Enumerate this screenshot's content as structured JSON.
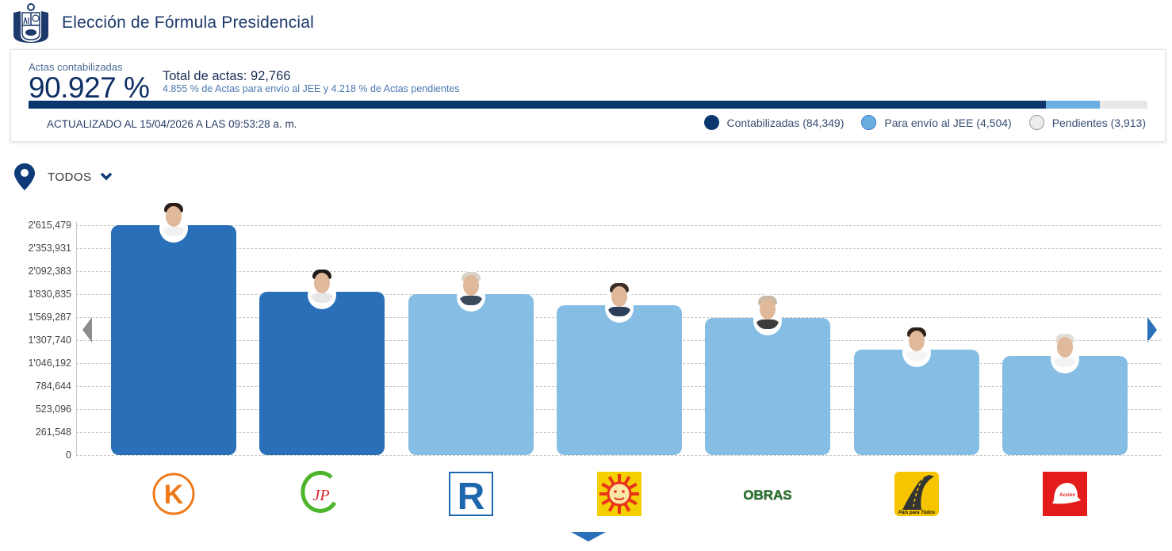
{
  "header": {
    "title": "Elección de Fórmula Presidencial",
    "emblem": "peru-coat-of-arms-icon"
  },
  "summary": {
    "label": "Actas contabilizadas",
    "percent": "90.927 %",
    "total": "Total de actas: 92,766",
    "detail": "4.855 % de Actas para envío al JEE y 4.218 % de Actas pendientes",
    "updated": "ACTUALIZADO AL 15/04/2026 A LAS 09:53:28 a. m.",
    "progress": {
      "contabilizadas_pct": 90.927,
      "jee_pct": 4.855,
      "pendientes_pct": 4.218
    },
    "colors": {
      "contabilizadas": "#0b356d",
      "jee": "#6aaee0",
      "pendientes": "#e8e8e8"
    },
    "legend": [
      {
        "label": "Contabilizadas (84,349)",
        "color": "#0b356d"
      },
      {
        "label": "Para envío al JEE (4,504)",
        "color": "#6aaee0"
      },
      {
        "label": "Pendientes (3,913)",
        "color": "#ececec"
      }
    ]
  },
  "filter": {
    "label": "TODOS",
    "icon": "location-pin-icon",
    "chevron": "chevron-down-icon"
  },
  "chart_data": {
    "type": "bar",
    "title": "",
    "xlabel": "",
    "ylabel": "",
    "ylim": [
      0,
      2615479
    ],
    "yticks": [
      "0",
      "261,548",
      "523,096",
      "784,644",
      "1'046,192",
      "1'307,740",
      "1'569,287",
      "1'830,835",
      "2'092,383",
      "2'353,931",
      "2'615,479"
    ],
    "grid": true,
    "categories": [
      "Fuerza Popular (K)",
      "Juntos por el Perú (JP)",
      "Renovación Popular (R)",
      "Partido Sol",
      "Obras",
      "País para Todos",
      "Partido con casco rojo"
    ],
    "values": [
      2615479,
      1857900,
      1830800,
      1704600,
      1560300,
      1199500,
      1127400
    ],
    "bar_colors": [
      "#2a70b9",
      "#2a70b9",
      "#86bde4",
      "#86bde4",
      "#86bde4",
      "#86bde4",
      "#86bde4"
    ],
    "logos": [
      {
        "name": "k-logo",
        "text": "K",
        "color": "#f07a1a"
      },
      {
        "name": "jp-logo",
        "text": "JP",
        "color": "#d8232a"
      },
      {
        "name": "r-logo",
        "text": "R",
        "color": "#1d67ad"
      },
      {
        "name": "sun-logo",
        "text": "",
        "color": "#f5d000"
      },
      {
        "name": "obras-logo",
        "text": "OBRAS",
        "color": "#2e7d32"
      },
      {
        "name": "road-logo",
        "text": "País para Todos",
        "color": "#f6c500"
      },
      {
        "name": "helmet-logo",
        "text": "",
        "color": "#e31b1b"
      }
    ],
    "legend_position": "none"
  },
  "nav": {
    "prev": "chevron-left-icon",
    "next": "chevron-right-icon",
    "more": "chevron-down-icon"
  }
}
